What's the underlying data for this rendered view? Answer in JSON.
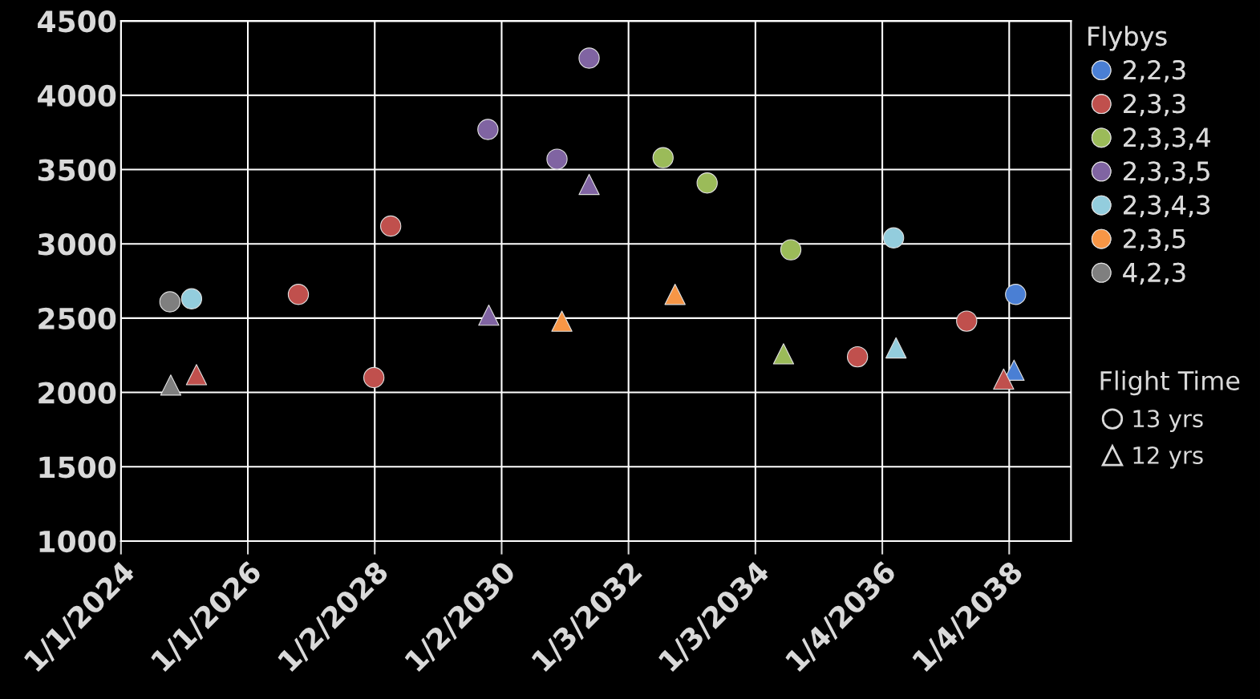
{
  "chart_data": {
    "type": "scatter",
    "legend_title": "Flybys",
    "legend": "right",
    "grid": true,
    "marker": "circle",
    "annotations": [
      "Flight Time",
      "13 yrs",
      "12 yrs"
    ],
    "xlim": [
      "2024-01-01",
      "2038-12-26"
    ],
    "xticks": [
      {
        "value": "2024-01-01",
        "label": "1/1/2024"
      },
      {
        "value": "2026-01-01",
        "label": "1/1/2026"
      },
      {
        "value": "2028-01-02",
        "label": "1/2/2028"
      },
      {
        "value": "2030-01-02",
        "label": "1/2/2030"
      },
      {
        "value": "2032-01-03",
        "label": "1/3/2032"
      },
      {
        "value": "2034-01-03",
        "label": "1/3/2034"
      },
      {
        "value": "2036-01-04",
        "label": "1/4/2036"
      },
      {
        "value": "2038-01-04",
        "label": "1/4/2038"
      }
    ],
    "ylim": [
      1000,
      4500
    ],
    "yticks": [
      1000,
      1500,
      2000,
      2500,
      3000,
      3500,
      4000,
      4500
    ],
    "series": [
      {
        "name": "2,2,3",
        "color": "#4a7fd4",
        "marker": "circle",
        "x": [
          "2038-02-10"
        ],
        "values": [
          2660
        ]
      },
      {
        "color": "#4a7fd4",
        "marker": "triangle",
        "x": [
          "2038-02-01"
        ],
        "values": [
          2150
        ]
      },
      {
        "name": "2,3,3",
        "color": "#c0504d",
        "marker": "circle",
        "x": [
          "2026-10-19",
          "2027-12-28",
          "2028-04-03",
          "2035-08-14",
          "2037-05-04"
        ],
        "values": [
          2660,
          2100,
          3120,
          2240,
          2480
        ]
      },
      {
        "color": "#c0504d",
        "marker": "triangle",
        "x": [
          "2025-03-11",
          "2037-12-03"
        ],
        "values": [
          2120,
          2090
        ]
      },
      {
        "name": "2,3,3,4",
        "color": "#9bbb59",
        "marker": "circle",
        "x": [
          "2032-07-20",
          "2033-03-31",
          "2034-07-26"
        ],
        "values": [
          3580,
          3410,
          2960
        ]
      },
      {
        "color": "#9bbb59",
        "marker": "triangle",
        "x": [
          "2034-06-14"
        ],
        "values": [
          2260
        ]
      },
      {
        "name": "2,3,3,5",
        "color": "#8064a2",
        "marker": "circle",
        "x": [
          "2029-10-15",
          "2030-11-17",
          "2031-05-21"
        ],
        "values": [
          3770,
          3570,
          4250
        ]
      },
      {
        "color": "#8064a2",
        "marker": "triangle",
        "x": [
          "2029-10-20",
          "2031-05-21"
        ],
        "values": [
          2520,
          3400
        ]
      },
      {
        "name": "2,3,4,3",
        "color": "#93cddd",
        "marker": "circle",
        "x": [
          "2025-02-11",
          "2036-03-09"
        ],
        "values": [
          2630,
          3040
        ]
      },
      {
        "color": "#93cddd",
        "marker": "triangle",
        "x": [
          "2036-03-23"
        ],
        "values": [
          2300
        ]
      },
      {
        "name": "2,3,5",
        "color": "#f79646",
        "marker": "triangle",
        "x": [
          "2030-12-15",
          "2032-09-27"
        ],
        "values": [
          2480,
          2660
        ]
      },
      {
        "name": "4,2,3",
        "color": "#7f7f7f",
        "marker": "circle",
        "x": [
          "2024-10-09"
        ],
        "values": [
          2610
        ]
      },
      {
        "color": "#7f7f7f",
        "marker": "triangle",
        "x": [
          "2024-10-14"
        ],
        "values": [
          2050
        ]
      }
    ]
  }
}
